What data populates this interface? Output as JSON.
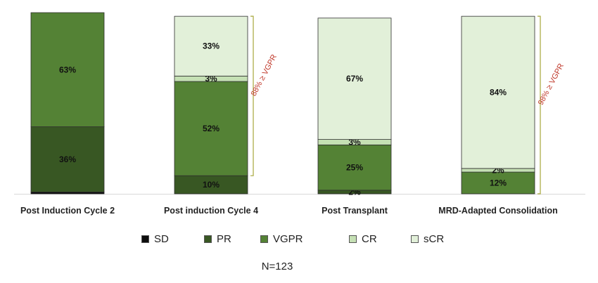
{
  "chart_data": {
    "type": "bar",
    "stacked": true,
    "categories": [
      "Post Induction Cycle 2",
      "Post induction Cycle 4",
      "Post Transplant",
      "MRD-Adapted Consolidation"
    ],
    "series": [
      {
        "name": "SD",
        "values": [
          1,
          0,
          0,
          0
        ],
        "color": "#0d0d0d"
      },
      {
        "name": "PR",
        "values": [
          36,
          10,
          2,
          0
        ],
        "color": "#385723"
      },
      {
        "name": "VGPR",
        "values": [
          63,
          52,
          25,
          12
        ],
        "color": "#548235"
      },
      {
        "name": "CR",
        "values": [
          0,
          3,
          3,
          2
        ],
        "color": "#c5e0b4"
      },
      {
        "name": "sCR",
        "values": [
          0,
          33,
          67,
          84
        ],
        "color": "#e2f0d9"
      }
    ],
    "segment_labels": [
      [
        "",
        "36%",
        "63%",
        "",
        ""
      ],
      [
        "",
        "10%",
        "52%",
        "3%",
        "33%"
      ],
      [
        "",
        "2%",
        "25%",
        "3%",
        "67%"
      ],
      [
        "",
        "",
        "12%",
        "2%",
        "84%"
      ]
    ],
    "brackets": [
      {
        "category_index": 1,
        "from_series": 2,
        "label": "88% ≥ VGPR"
      },
      {
        "category_index": 3,
        "from_series": 2,
        "label": "98% ≥ VGPR"
      }
    ],
    "legend": [
      "SD",
      "PR",
      "VGPR",
      "CR",
      "sCR"
    ],
    "legend_position": "bottom",
    "ylim": [
      0,
      100
    ],
    "grid": false,
    "bracket_color": "#a6a63a"
  },
  "note": "N=123"
}
